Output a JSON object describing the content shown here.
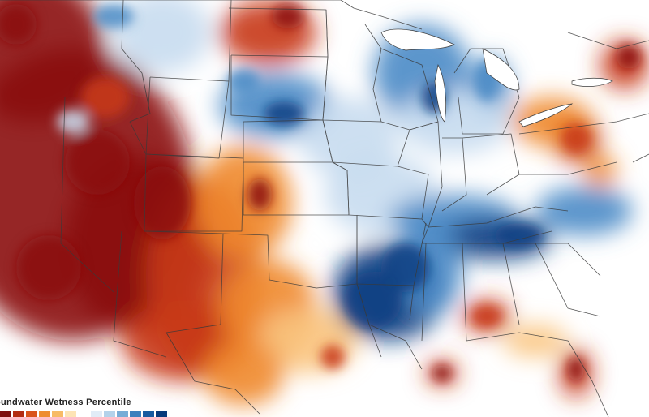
{
  "map": {
    "legend": {
      "title": "oundwater Wetness Percentile",
      "colors": [
        "#7f0f0f",
        "#b32c12",
        "#d9541b",
        "#ee8d31",
        "#f7bb66",
        "#fde4b5",
        "#ffffff",
        "#e1ecf7",
        "#b3d2ea",
        "#76acd6",
        "#3b80bd",
        "#175a9f",
        "#073a7a"
      ]
    },
    "palette": {
      "severe_dry": "#8b0d10",
      "dry": "#c8381a",
      "moderate_dry": "#ef8a2f",
      "slight_dry": "#f9c47e",
      "neutral": "#ffffff",
      "slight_wet": "#c8dcef",
      "wet": "#4b8bc6",
      "very_wet": "#0d3f82",
      "boundary": "#3a3a3a"
    }
  }
}
